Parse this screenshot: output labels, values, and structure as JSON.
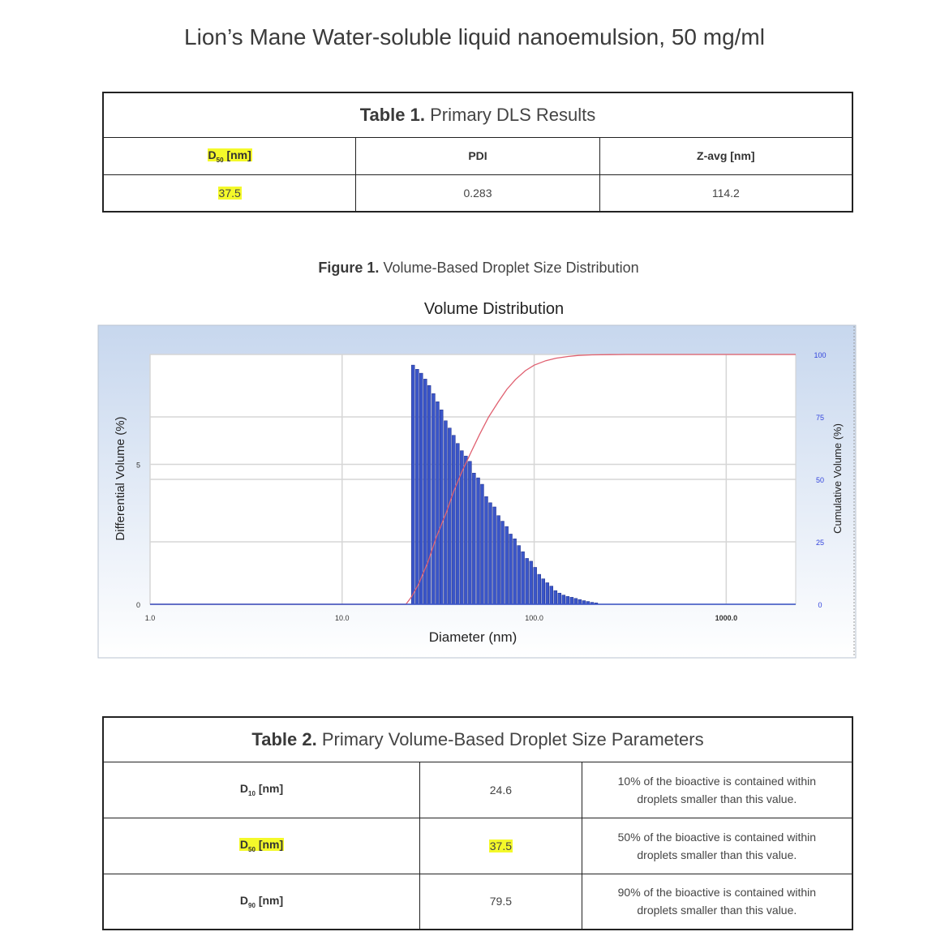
{
  "title": "Lion’s Mane Water-soluble liquid nanoemulsion, 50 mg/ml",
  "table1": {
    "caption_label": "Table 1.",
    "caption_text": "Primary DLS Results",
    "headers": {
      "d50_main": "D",
      "d50_sub": "50",
      "d50_unit": " [nm]",
      "pdi": "PDI",
      "zavg": "Z-avg [nm]"
    },
    "values": {
      "d50": "37.5",
      "pdi": "0.283",
      "zavg": "114.2"
    }
  },
  "figure": {
    "caption_label": "Figure 1.",
    "caption_text": "Volume-Based Droplet Size Distribution"
  },
  "chart_data": {
    "type": "bar",
    "title": "Volume Distribution",
    "xlabel": "Diameter (nm)",
    "ylabel": "Differential Volume (%)",
    "y2label": "Cumulative Volume (%)",
    "x_scale": "log",
    "xlim": [
      1,
      2300
    ],
    "x_ticks": [
      "1.0",
      "10.0",
      "100.0",
      "1000.0"
    ],
    "ylim": [
      0,
      8.93
    ],
    "y_ticks": [
      "0",
      "5"
    ],
    "y2lim": [
      0,
      100
    ],
    "y2_ticks": [
      "0",
      "25",
      "50",
      "75",
      "100"
    ],
    "grid": true,
    "series": [
      {
        "name": "Differential Volume (%)",
        "type": "bar",
        "color": "#3a55c8",
        "x": [
          23.4,
          24.6,
          25.8,
          27.1,
          28.4,
          29.9,
          31.4,
          32.9,
          34.6,
          36.3,
          38.1,
          40.0,
          42.0,
          44.1,
          46.3,
          48.6,
          51.1,
          53.6,
          56.3,
          59.1,
          62.1,
          65.2,
          68.4,
          71.9,
          75.4,
          79.2,
          83.2,
          87.3,
          91.7,
          96.3,
          101.1,
          106.2,
          111.5,
          117.1,
          122.9,
          129.1,
          135.5,
          142.3,
          149.4,
          156.9,
          164.7,
          172.9,
          181.6,
          190.6,
          200.2,
          210.2
        ],
        "values": [
          8.55,
          8.4,
          8.26,
          8.05,
          7.82,
          7.53,
          7.24,
          6.95,
          6.56,
          6.3,
          6.04,
          5.75,
          5.49,
          5.3,
          5.11,
          4.69,
          4.52,
          4.29,
          3.85,
          3.63,
          3.48,
          3.17,
          2.97,
          2.78,
          2.51,
          2.34,
          2.1,
          1.88,
          1.64,
          1.54,
          1.32,
          1.07,
          0.91,
          0.77,
          0.65,
          0.49,
          0.4,
          0.33,
          0.28,
          0.25,
          0.21,
          0.17,
          0.13,
          0.1,
          0.07,
          0.05
        ]
      },
      {
        "name": "Cumulative Volume (%)",
        "type": "line",
        "axis": "right",
        "color": "#e06070",
        "x": [
          1,
          21.5,
          23,
          25,
          28,
          31,
          35,
          38,
          42,
          47,
          52,
          58,
          65,
          72,
          80,
          90,
          100,
          115,
          130,
          150,
          170,
          200,
          250,
          300,
          500,
          1000,
          2300
        ],
        "values": [
          0,
          0,
          3,
          8,
          17,
          27,
          37,
          45,
          53,
          61,
          68,
          75,
          81,
          86,
          90,
          93.5,
          95.7,
          97.5,
          98.5,
          99.2,
          99.6,
          99.85,
          99.95,
          100,
          100,
          100,
          100
        ]
      }
    ]
  },
  "table2": {
    "caption_label": "Table 2.",
    "caption_text": "Primary Volume-Based Droplet Size Parameters",
    "rows": [
      {
        "param_main": "D",
        "param_sub": "10",
        "param_unit": " [nm]",
        "value": "24.6",
        "desc1": "10% of the bioactive is contained within",
        "desc2": "droplets smaller than this value."
      },
      {
        "param_main": "D",
        "param_sub": "50",
        "param_unit": " [nm]",
        "value": "37.5",
        "desc1": "50% of the bioactive is contained within",
        "desc2": "droplets smaller than this value."
      },
      {
        "param_main": "D",
        "param_sub": "90",
        "param_unit": " [nm]",
        "value": "79.5",
        "desc1": "90% of the bioactive is contained within",
        "desc2": "droplets smaller than this value."
      }
    ]
  }
}
